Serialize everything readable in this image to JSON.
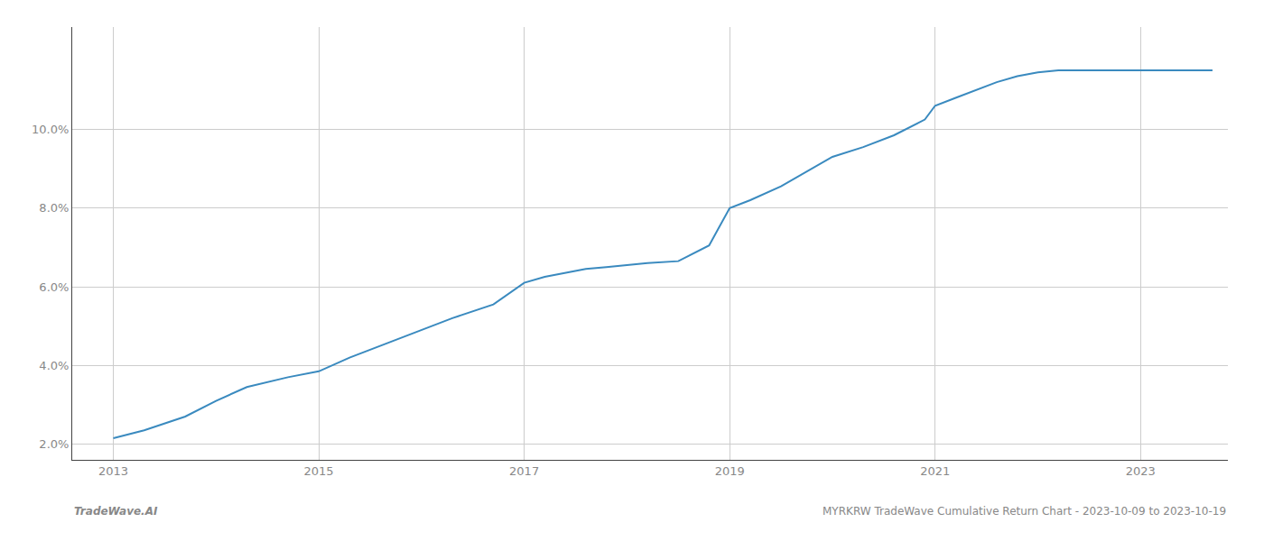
{
  "chart_data": {
    "type": "line",
    "x": [
      2013.0,
      2013.3,
      2013.7,
      2014.0,
      2014.3,
      2014.7,
      2015.0,
      2015.3,
      2015.7,
      2016.0,
      2016.3,
      2016.7,
      2017.0,
      2017.2,
      2017.4,
      2017.6,
      2017.8,
      2018.0,
      2018.2,
      2018.5,
      2018.8,
      2019.0,
      2019.2,
      2019.5,
      2019.8,
      2020.0,
      2020.3,
      2020.6,
      2020.9,
      2021.0,
      2021.2,
      2021.4,
      2021.6,
      2021.8,
      2022.0,
      2022.2,
      2022.5,
      2022.7,
      2023.0,
      2023.7
    ],
    "values": [
      2.15,
      2.35,
      2.7,
      3.1,
      3.45,
      3.7,
      3.85,
      4.2,
      4.6,
      4.9,
      5.2,
      5.55,
      6.1,
      6.25,
      6.35,
      6.45,
      6.5,
      6.55,
      6.6,
      6.65,
      7.05,
      8.0,
      8.2,
      8.55,
      9.0,
      9.3,
      9.55,
      9.85,
      10.25,
      10.6,
      10.8,
      11.0,
      11.2,
      11.35,
      11.45,
      11.5,
      11.5,
      11.5,
      11.5,
      11.5
    ],
    "color": "#3a8abf",
    "xlim": [
      2012.6,
      2023.85
    ],
    "ylim": [
      1.6,
      12.6
    ],
    "xticks": [
      2013,
      2015,
      2017,
      2019,
      2021,
      2023
    ],
    "yticks": [
      {
        "value": 2.0,
        "label": "2.0%"
      },
      {
        "value": 4.0,
        "label": "4.0%"
      },
      {
        "value": 6.0,
        "label": "6.0%"
      },
      {
        "value": 8.0,
        "label": "8.0%"
      },
      {
        "value": 10.0,
        "label": "10.0%"
      }
    ],
    "grid": true,
    "annotations": [
      "TradeWave.AI",
      "MYRKRW TradeWave Cumulative Return Chart - 2023-10-09 to 2023-10-19"
    ]
  }
}
